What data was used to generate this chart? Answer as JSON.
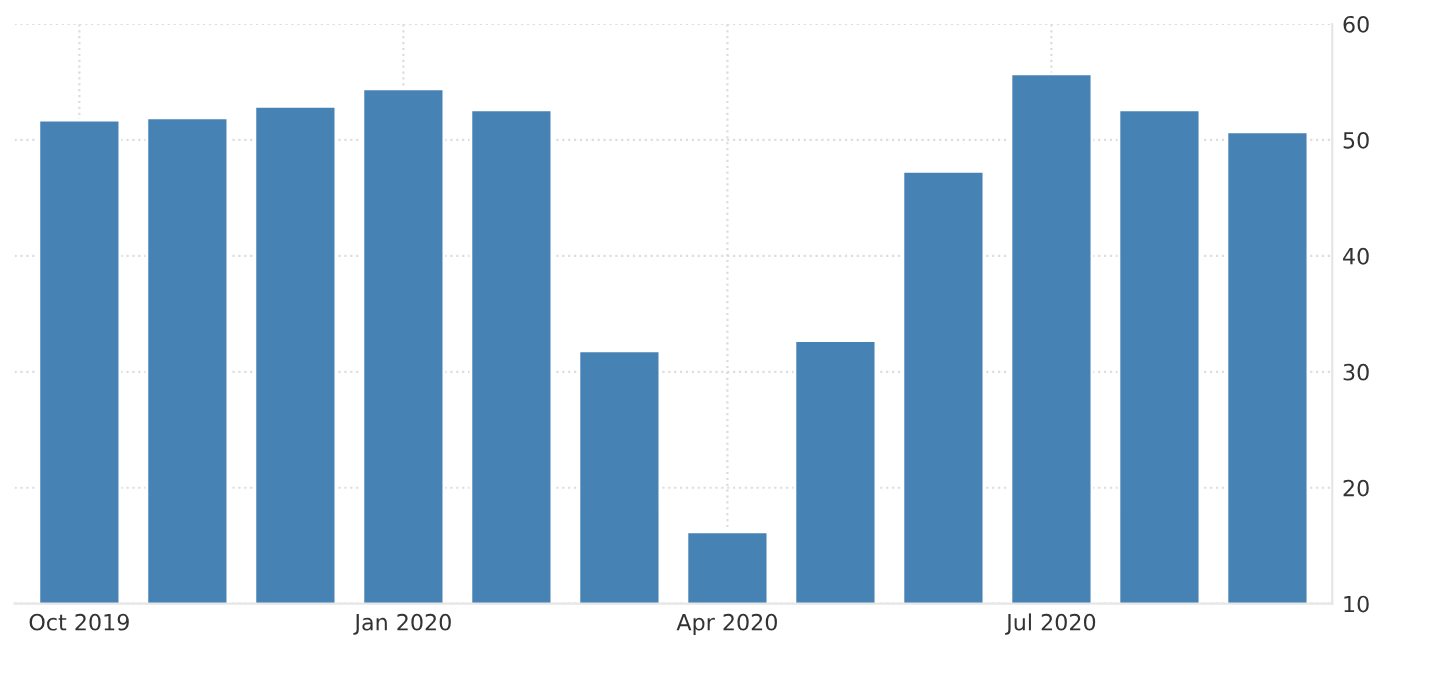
{
  "chart_data": {
    "type": "bar",
    "categories": [
      "Oct 2019",
      null,
      null,
      "Jan 2020",
      null,
      null,
      "Apr 2020",
      null,
      null,
      "Jul 2020",
      null,
      null
    ],
    "values": [
      51.7,
      51.9,
      52.9,
      54.4,
      52.6,
      31.8,
      16.2,
      32.7,
      47.3,
      55.7,
      52.6,
      50.7
    ],
    "color": "#4682b4",
    "ylim": [
      10,
      60
    ],
    "yticks": [
      10,
      20,
      30,
      40,
      50,
      60
    ],
    "grid": true
  }
}
